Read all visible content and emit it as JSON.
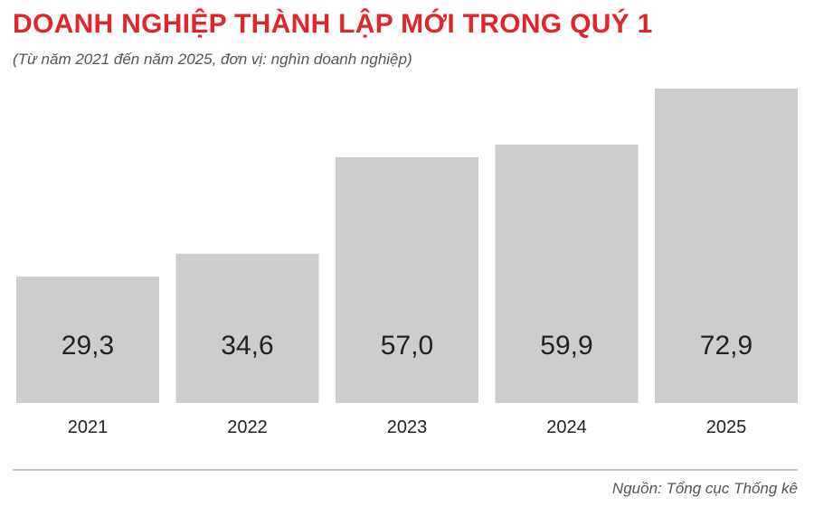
{
  "colors": {
    "title": "#e0262b",
    "bar": "#cfcccf",
    "value_text": "#222222",
    "label_text": "#222222"
  },
  "chart_data": {
    "type": "bar",
    "title": "DOANH NGHIỆP THÀNH LẬP MỚI TRONG QUÝ 1",
    "subtitle": "(Từ năm 2021 đến năm 2025, đơn vị: nghìn doanh nghiệp)",
    "categories": [
      "2021",
      "2022",
      "2023",
      "2024",
      "2025"
    ],
    "values": [
      29.3,
      34.6,
      57.0,
      59.9,
      72.9
    ],
    "value_labels": [
      "29,3",
      "34,6",
      "57,0",
      "59,9",
      "72,9"
    ],
    "xlabel": "",
    "ylabel": "",
    "grid": false,
    "legend": "none"
  },
  "source": "Nguồn: Tổng cục Thống kê"
}
